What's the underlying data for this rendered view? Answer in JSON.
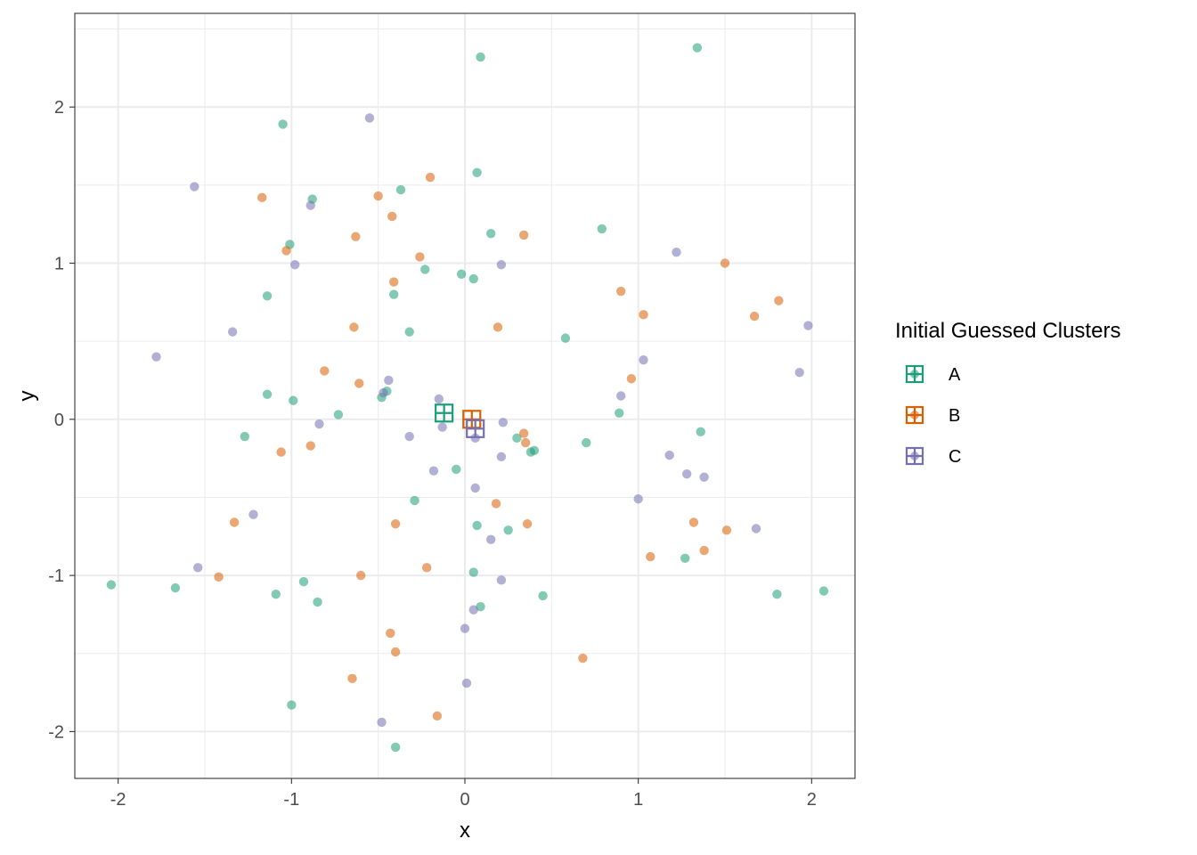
{
  "chart_data": {
    "type": "scatter",
    "title": "",
    "xlabel": "x",
    "ylabel": "y",
    "xlim": [
      -2.25,
      2.25
    ],
    "ylim": [
      -2.3,
      2.6
    ],
    "x_ticks": [
      -2,
      -1,
      0,
      1,
      2
    ],
    "y_ticks": [
      -2,
      -1,
      0,
      1,
      2
    ],
    "x_tick_labels": [
      "-2",
      "-1",
      "0",
      "1",
      "2"
    ],
    "y_tick_labels": [
      "-2",
      "-1",
      "0",
      "1",
      "2"
    ],
    "grid": true,
    "legend": {
      "title": "Initial Guessed Clusters",
      "placement": "right",
      "entries": [
        "A",
        "B",
        "C"
      ]
    },
    "colors": {
      "A": "#1b9e77",
      "B": "#d95f02",
      "C": "#7570b3"
    },
    "series": [
      {
        "name": "A",
        "points": [
          [
            0.09,
            2.32
          ],
          [
            1.34,
            2.38
          ],
          [
            -1.05,
            1.89
          ],
          [
            0.07,
            1.58
          ],
          [
            -0.37,
            1.47
          ],
          [
            -0.88,
            1.41
          ],
          [
            0.15,
            1.19
          ],
          [
            0.79,
            1.22
          ],
          [
            -1.01,
            1.12
          ],
          [
            -0.23,
            0.96
          ],
          [
            -0.02,
            0.93
          ],
          [
            0.05,
            0.9
          ],
          [
            -1.14,
            0.79
          ],
          [
            -0.41,
            0.8
          ],
          [
            -0.32,
            0.56
          ],
          [
            0.58,
            0.52
          ],
          [
            -1.14,
            0.16
          ],
          [
            -0.99,
            0.12
          ],
          [
            -0.45,
            0.18
          ],
          [
            -0.48,
            0.14
          ],
          [
            -0.73,
            0.03
          ],
          [
            0.89,
            0.04
          ],
          [
            -1.27,
            -0.11
          ],
          [
            1.36,
            -0.08
          ],
          [
            0.3,
            -0.12
          ],
          [
            0.7,
            -0.15
          ],
          [
            0.38,
            -0.21
          ],
          [
            0.4,
            -0.2
          ],
          [
            -0.05,
            -0.32
          ],
          [
            -0.29,
            -0.52
          ],
          [
            0.07,
            -0.68
          ],
          [
            0.25,
            -0.71
          ],
          [
            -2.04,
            -1.06
          ],
          [
            -1.67,
            -1.08
          ],
          [
            -1.09,
            -1.12
          ],
          [
            -0.93,
            -1.04
          ],
          [
            -0.85,
            -1.17
          ],
          [
            0.05,
            -0.98
          ],
          [
            0.45,
            -1.13
          ],
          [
            0.09,
            -1.2
          ],
          [
            1.27,
            -0.89
          ],
          [
            1.8,
            -1.12
          ],
          [
            2.07,
            -1.1
          ],
          [
            -1.0,
            -1.83
          ],
          [
            -0.4,
            -2.1
          ]
        ]
      },
      {
        "name": "B",
        "points": [
          [
            -1.17,
            1.42
          ],
          [
            -0.5,
            1.43
          ],
          [
            -0.2,
            1.55
          ],
          [
            -0.42,
            1.3
          ],
          [
            -0.63,
            1.17
          ],
          [
            0.34,
            1.18
          ],
          [
            -1.03,
            1.08
          ],
          [
            -0.26,
            1.04
          ],
          [
            -0.41,
            0.88
          ],
          [
            1.5,
            1.0
          ],
          [
            0.9,
            0.82
          ],
          [
            1.03,
            0.67
          ],
          [
            1.67,
            0.66
          ],
          [
            1.81,
            0.76
          ],
          [
            -0.64,
            0.59
          ],
          [
            0.19,
            0.59
          ],
          [
            -0.81,
            0.31
          ],
          [
            -0.61,
            0.23
          ],
          [
            0.96,
            0.26
          ],
          [
            0.34,
            -0.09
          ],
          [
            0.35,
            -0.15
          ],
          [
            -1.06,
            -0.21
          ],
          [
            -0.89,
            -0.17
          ],
          [
            0.18,
            -0.54
          ],
          [
            0.36,
            -0.67
          ],
          [
            -1.33,
            -0.66
          ],
          [
            -0.4,
            -0.67
          ],
          [
            1.32,
            -0.66
          ],
          [
            1.51,
            -0.71
          ],
          [
            1.38,
            -0.84
          ],
          [
            1.07,
            -0.88
          ],
          [
            -1.42,
            -1.01
          ],
          [
            -0.6,
            -1.0
          ],
          [
            -0.22,
            -0.95
          ],
          [
            -0.43,
            -1.37
          ],
          [
            -0.4,
            -1.49
          ],
          [
            0.68,
            -1.53
          ],
          [
            -0.65,
            -1.66
          ],
          [
            -0.16,
            -1.9
          ]
        ]
      },
      {
        "name": "C",
        "points": [
          [
            -0.55,
            1.93
          ],
          [
            -1.56,
            1.49
          ],
          [
            -0.89,
            1.37
          ],
          [
            -0.98,
            0.99
          ],
          [
            0.21,
            0.99
          ],
          [
            1.22,
            1.07
          ],
          [
            -1.34,
            0.56
          ],
          [
            -1.78,
            0.4
          ],
          [
            1.98,
            0.6
          ],
          [
            1.03,
            0.38
          ],
          [
            1.93,
            0.3
          ],
          [
            -0.44,
            0.25
          ],
          [
            -0.47,
            0.17
          ],
          [
            -0.15,
            0.13
          ],
          [
            0.9,
            0.15
          ],
          [
            -0.84,
            -0.03
          ],
          [
            -0.13,
            -0.05
          ],
          [
            0.06,
            -0.12
          ],
          [
            0.22,
            -0.02
          ],
          [
            -0.32,
            -0.11
          ],
          [
            -0.18,
            -0.33
          ],
          [
            0.21,
            -0.24
          ],
          [
            1.18,
            -0.23
          ],
          [
            1.28,
            -0.35
          ],
          [
            1.38,
            -0.37
          ],
          [
            0.06,
            -0.44
          ],
          [
            1.0,
            -0.51
          ],
          [
            -1.22,
            -0.61
          ],
          [
            0.15,
            -0.77
          ],
          [
            1.68,
            -0.7
          ],
          [
            -1.54,
            -0.95
          ],
          [
            0.21,
            -1.03
          ],
          [
            0.05,
            -1.22
          ],
          [
            0.0,
            -1.34
          ],
          [
            0.01,
            -1.69
          ],
          [
            -0.48,
            -1.94
          ]
        ]
      }
    ],
    "centroids": [
      {
        "name": "A",
        "x": -0.12,
        "y": 0.04
      },
      {
        "name": "B",
        "x": 0.04,
        "y": 0.0
      },
      {
        "name": "C",
        "x": 0.06,
        "y": -0.06
      }
    ]
  }
}
